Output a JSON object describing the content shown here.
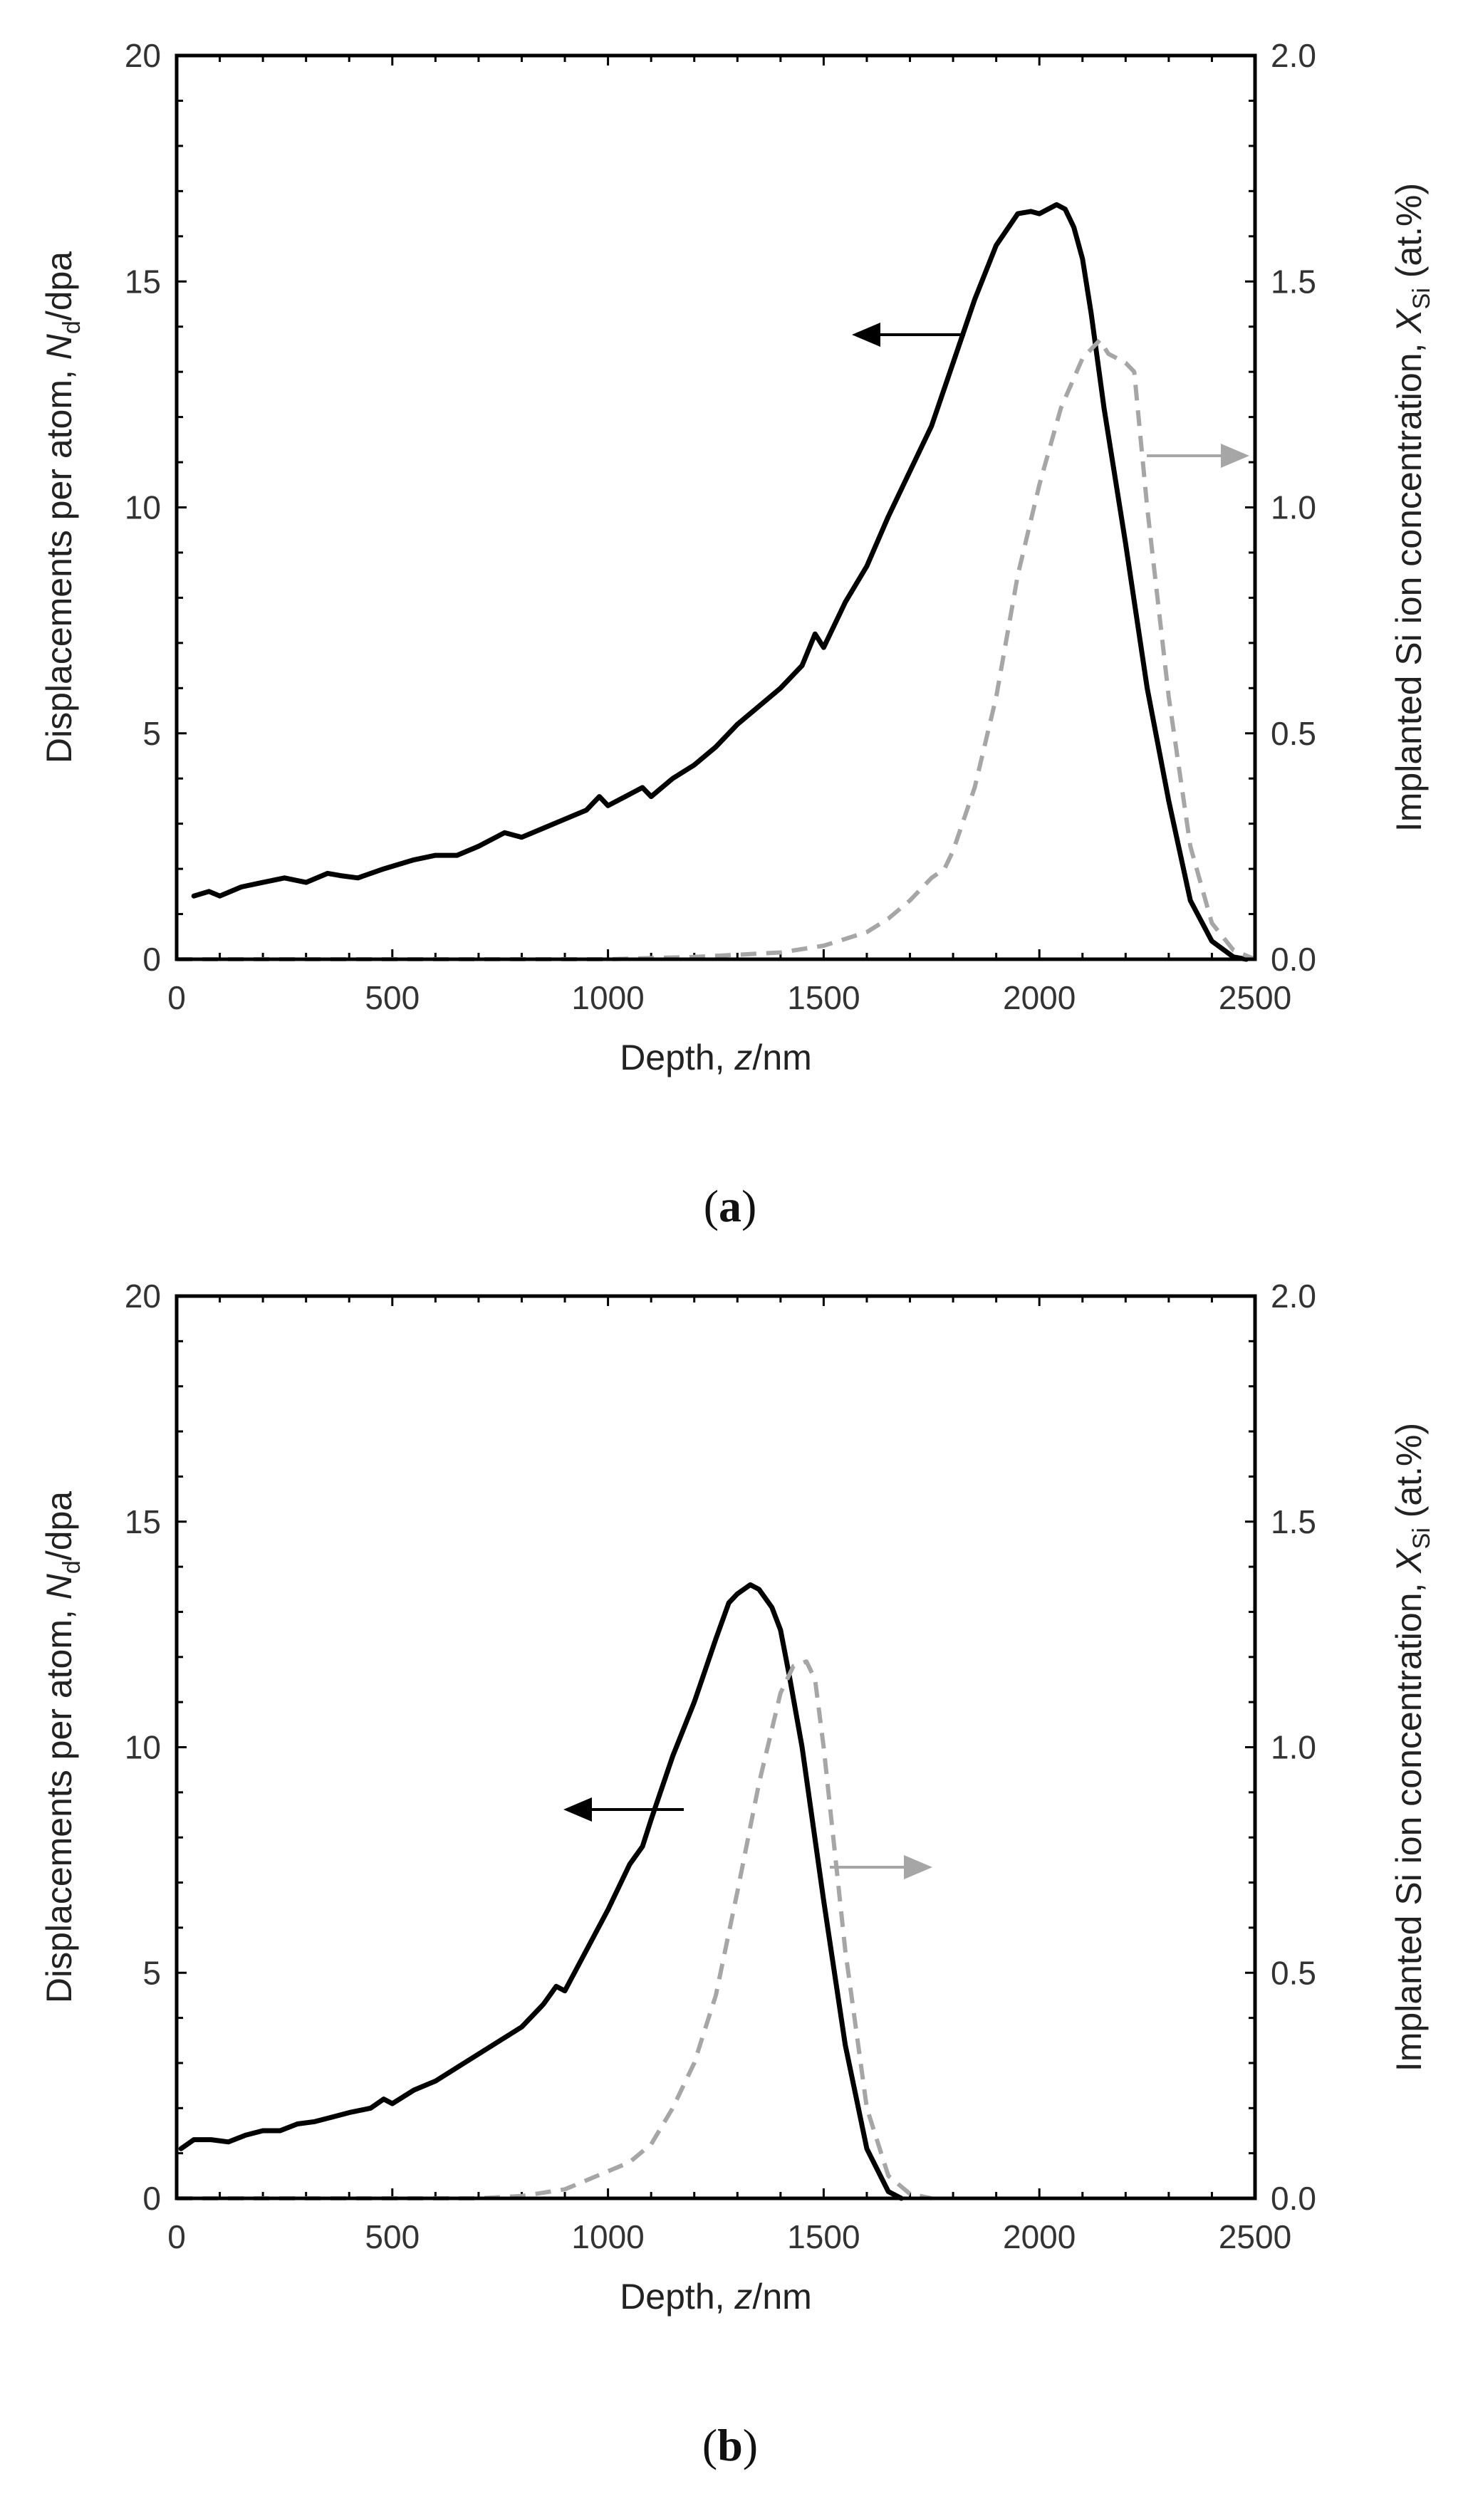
{
  "chart_data": [
    {
      "panel": "a",
      "type": "line",
      "caption_letter": "a",
      "xlabel": "Depth, ",
      "xlabel_italic": "z",
      "xlabel_unit": "/nm",
      "ylabel": "Displacements per atom, ",
      "ylabel_italic": "N",
      "ylabel_sub": "d",
      "ylabel_unit": "/dpa",
      "y2label": "Implanted Si ion concentration, ",
      "y2label_italic": "X",
      "y2label_sub": "Si",
      "y2label_unit": " (at.%)",
      "xlim": [
        0,
        2500
      ],
      "ylim": [
        0,
        20
      ],
      "y2lim": [
        0,
        2.0
      ],
      "xticks": [
        "0",
        "500",
        "1000",
        "1500",
        "2000",
        "2500"
      ],
      "yticks": [
        "0",
        "5",
        "10",
        "15",
        "20"
      ],
      "y2ticks": [
        "0.0",
        "0.5",
        "1.0",
        "1.5",
        "2.0"
      ],
      "series": [
        {
          "name": "Displacements per atom",
          "axis": "left",
          "style": "solid",
          "color": "#000000",
          "x": [
            40,
            75,
            100,
            150,
            200,
            250,
            300,
            350,
            380,
            420,
            480,
            550,
            600,
            650,
            700,
            760,
            800,
            850,
            900,
            950,
            980,
            1000,
            1040,
            1080,
            1100,
            1150,
            1200,
            1250,
            1300,
            1350,
            1400,
            1450,
            1480,
            1500,
            1550,
            1600,
            1650,
            1700,
            1750,
            1800,
            1850,
            1900,
            1950,
            1980,
            2000,
            2040,
            2060,
            2080,
            2100,
            2120,
            2150,
            2200,
            2250,
            2300,
            2350,
            2400,
            2450,
            2480
          ],
          "values": [
            1.4,
            1.5,
            1.4,
            1.6,
            1.7,
            1.8,
            1.7,
            1.9,
            1.85,
            1.8,
            2.0,
            2.2,
            2.3,
            2.3,
            2.5,
            2.8,
            2.7,
            2.9,
            3.1,
            3.3,
            3.6,
            3.4,
            3.6,
            3.8,
            3.6,
            4.0,
            4.3,
            4.7,
            5.2,
            5.6,
            6.0,
            6.5,
            7.2,
            6.9,
            7.9,
            8.7,
            9.8,
            10.8,
            11.8,
            13.2,
            14.6,
            15.8,
            16.5,
            16.55,
            16.5,
            16.7,
            16.6,
            16.2,
            15.5,
            14.3,
            12.2,
            9.2,
            6.0,
            3.5,
            1.3,
            0.4,
            0.05,
            0.0
          ]
        },
        {
          "name": "Implanted Si ion concentration",
          "axis": "right",
          "style": "dashed",
          "color": "#a6a6a6",
          "x": [
            0,
            500,
            1000,
            1200,
            1300,
            1400,
            1500,
            1600,
            1650,
            1700,
            1750,
            1780,
            1800,
            1850,
            1900,
            1950,
            2000,
            2050,
            2100,
            2140,
            2160,
            2200,
            2220,
            2250,
            2300,
            2350,
            2400,
            2450,
            2500
          ],
          "values": [
            0.0,
            0.0,
            0.0,
            0.005,
            0.01,
            0.015,
            0.03,
            0.06,
            0.09,
            0.13,
            0.18,
            0.2,
            0.24,
            0.38,
            0.58,
            0.85,
            1.05,
            1.22,
            1.33,
            1.37,
            1.34,
            1.32,
            1.3,
            1.0,
            0.58,
            0.25,
            0.08,
            0.02,
            0.0
          ]
        }
      ],
      "annotations": [
        {
          "type": "arrow",
          "direction": "left",
          "color": "#000000",
          "points_to_axis": "left"
        },
        {
          "type": "arrow",
          "direction": "right",
          "color": "#a6a6a6",
          "points_to_axis": "right"
        }
      ]
    },
    {
      "panel": "b",
      "type": "line",
      "caption_letter": "b",
      "xlabel": "Depth, ",
      "xlabel_italic": "z",
      "xlabel_unit": "/nm",
      "ylabel": "Displacements per atom, ",
      "ylabel_italic": "N",
      "ylabel_sub": "d",
      "ylabel_unit": "/dpa",
      "y2label": "Implanted Si ion concentration, ",
      "y2label_italic": "X",
      "y2label_sub": "Si",
      "y2label_unit": " (at.%)",
      "xlim": [
        0,
        2500
      ],
      "ylim": [
        0,
        20
      ],
      "y2lim": [
        0,
        2.0
      ],
      "xticks": [
        "0",
        "500",
        "1000",
        "1500",
        "2000",
        "2500"
      ],
      "yticks": [
        "0",
        "5",
        "10",
        "15",
        "20"
      ],
      "y2ticks": [
        "0.0",
        "0.5",
        "1.0",
        "1.5",
        "2.0"
      ],
      "series": [
        {
          "name": "Displacements per atom",
          "axis": "left",
          "style": "solid",
          "color": "#000000",
          "x": [
            10,
            40,
            80,
            120,
            160,
            200,
            240,
            280,
            320,
            360,
            400,
            450,
            480,
            500,
            550,
            600,
            650,
            700,
            750,
            800,
            850,
            880,
            900,
            950,
            1000,
            1050,
            1080,
            1100,
            1150,
            1200,
            1250,
            1280,
            1300,
            1330,
            1350,
            1380,
            1400,
            1420,
            1450,
            1500,
            1550,
            1600,
            1650,
            1680
          ],
          "values": [
            1.1,
            1.3,
            1.3,
            1.25,
            1.4,
            1.5,
            1.5,
            1.65,
            1.7,
            1.8,
            1.9,
            2.0,
            2.2,
            2.1,
            2.4,
            2.6,
            2.9,
            3.2,
            3.5,
            3.8,
            4.3,
            4.7,
            4.6,
            5.5,
            6.4,
            7.4,
            7.8,
            8.4,
            9.8,
            11.0,
            12.4,
            13.2,
            13.4,
            13.6,
            13.5,
            13.1,
            12.6,
            11.6,
            10.0,
            6.6,
            3.4,
            1.1,
            0.15,
            0.0
          ]
        },
        {
          "name": "Implanted Si ion concentration",
          "axis": "right",
          "style": "dashed",
          "color": "#a6a6a6",
          "x": [
            0,
            700,
            800,
            900,
            950,
            1000,
            1050,
            1100,
            1150,
            1200,
            1250,
            1300,
            1350,
            1400,
            1430,
            1460,
            1480,
            1500,
            1550,
            1600,
            1650,
            1700,
            1750
          ],
          "values": [
            0.0,
            0.0,
            0.005,
            0.02,
            0.04,
            0.06,
            0.08,
            0.12,
            0.2,
            0.3,
            0.45,
            0.68,
            0.92,
            1.12,
            1.18,
            1.19,
            1.15,
            1.0,
            0.55,
            0.2,
            0.05,
            0.01,
            0.0
          ]
        }
      ],
      "annotations": [
        {
          "type": "arrow",
          "direction": "left",
          "color": "#000000",
          "points_to_axis": "left"
        },
        {
          "type": "arrow",
          "direction": "right",
          "color": "#a6a6a6",
          "points_to_axis": "right"
        }
      ]
    }
  ]
}
